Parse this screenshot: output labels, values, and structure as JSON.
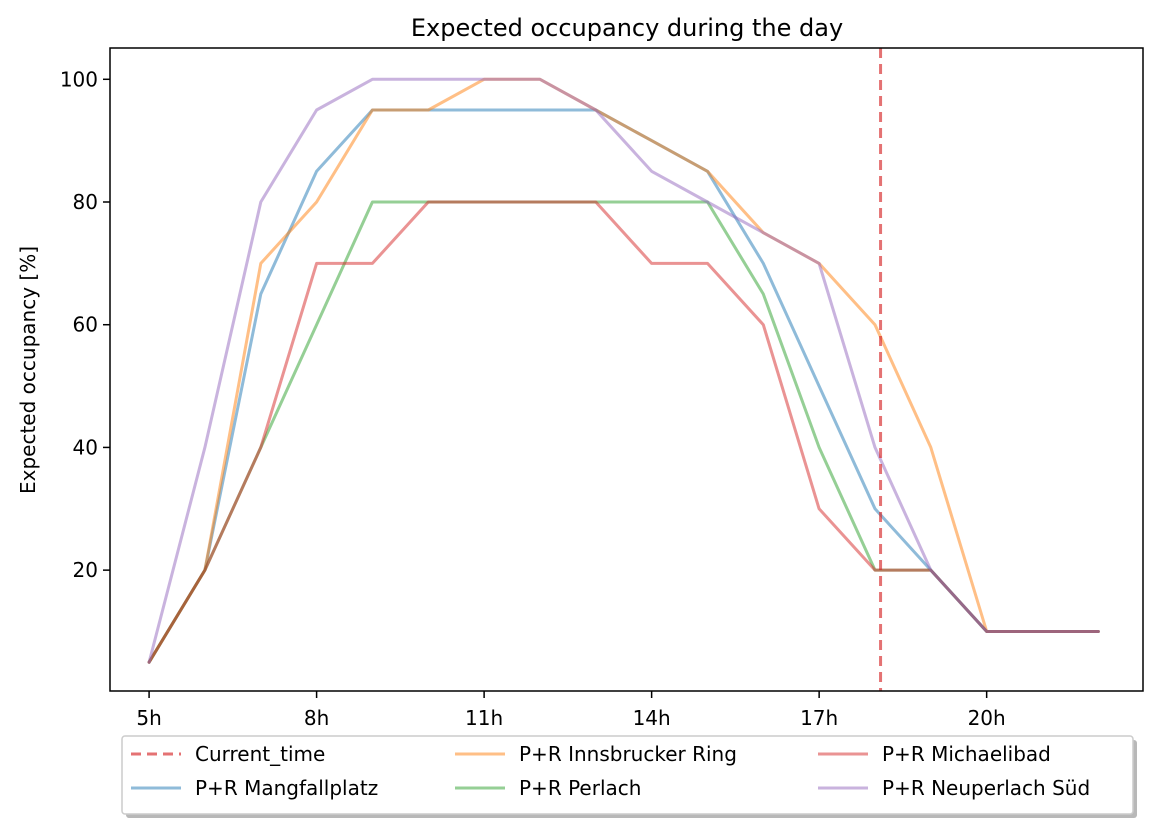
{
  "chart_data": {
    "type": "line",
    "title": "Expected occupancy during the day",
    "xlabel": "",
    "ylabel": "Expected occupancy [%]",
    "xlim": [
      4.3,
      22.8
    ],
    "ylim": [
      0.3,
      105.1
    ],
    "x_ticks": [
      5,
      8,
      11,
      14,
      17,
      20
    ],
    "x_tick_labels": [
      "5h",
      "8h",
      "11h",
      "14h",
      "17h",
      "20h"
    ],
    "y_ticks": [
      20,
      40,
      60,
      80,
      100
    ],
    "y_tick_labels": [
      "20",
      "40",
      "60",
      "80",
      "100"
    ],
    "grid": false,
    "legend_position": "bottom-outside",
    "current_time": {
      "name": "Current_time",
      "x": 18.1,
      "color": "#d62728",
      "style": "dashed"
    },
    "x": [
      5,
      6,
      7,
      8,
      9,
      10,
      11,
      12,
      13,
      14,
      15,
      16,
      17,
      18,
      19,
      20,
      21,
      22
    ],
    "series": [
      {
        "name": "P+R Mangfallplatz",
        "color": "#1f77b4",
        "values": [
          5,
          20,
          65,
          85,
          95,
          95,
          95,
          95,
          95,
          90,
          85,
          70,
          50,
          30,
          20,
          10,
          10,
          10
        ]
      },
      {
        "name": "P+R Innsbrucker Ring",
        "color": "#ff7f0e",
        "values": [
          5,
          20,
          70,
          80,
          95,
          95,
          100,
          100,
          95,
          90,
          85,
          75,
          70,
          60,
          40,
          10,
          10,
          10
        ]
      },
      {
        "name": "P+R Perlach",
        "color": "#2ca02c",
        "values": [
          5,
          20,
          40,
          60,
          80,
          80,
          80,
          80,
          80,
          80,
          80,
          65,
          40,
          20,
          20,
          10,
          10,
          10
        ]
      },
      {
        "name": "P+R Michaelibad",
        "color": "#d62728",
        "values": [
          5,
          20,
          40,
          70,
          70,
          80,
          80,
          80,
          80,
          70,
          70,
          60,
          30,
          20,
          20,
          10,
          10,
          10
        ]
      },
      {
        "name": "P+R Neuperlach Süd",
        "color": "#9467bd",
        "values": [
          5,
          40,
          80,
          95,
          100,
          100,
          100,
          100,
          95,
          85,
          80,
          75,
          70,
          40,
          20,
          10,
          10,
          10
        ]
      }
    ],
    "legend_order": [
      "Current_time",
      "P+R Innsbrucker Ring",
      "P+R Michaelibad",
      "P+R Mangfallplatz",
      "P+R Perlach",
      "P+R Neuperlach Süd"
    ]
  }
}
